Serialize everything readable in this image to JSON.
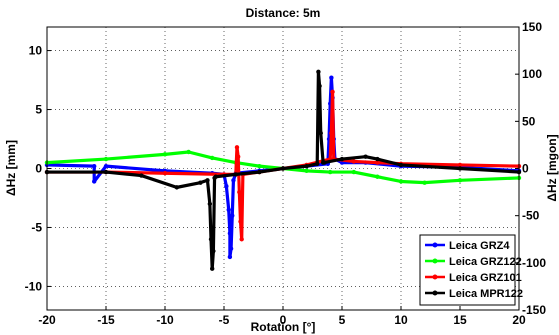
{
  "chart_data": {
    "type": "line",
    "title": "Distance: 5m",
    "xlabel": "Rotation [°]",
    "ylabel": "ΔHz [mm]",
    "ylabel_right": "ΔHz [mgon]",
    "xlim": [
      -20,
      20
    ],
    "ylim": [
      -12,
      12
    ],
    "ylim_right": [
      -150,
      150
    ],
    "xticks": [
      "-20",
      "-15",
      "-10",
      "-5",
      "0",
      "5",
      "10",
      "15",
      "20"
    ],
    "yticks": [
      "-10",
      "-5",
      "0",
      "5",
      "10"
    ],
    "yticks_right": [
      "-150",
      "-100",
      "-50",
      "0",
      "50",
      "100",
      "150"
    ],
    "grid": true,
    "legend_position": "bottom-right",
    "series": [
      {
        "name": "Leica GRZ4",
        "color": "#0000ff",
        "x": [
          -20,
          -16,
          -16,
          -15,
          -10,
          -6,
          -5,
          -4.8,
          -4.6,
          -4.5,
          -4.5,
          -4.4,
          -4.3,
          -4.2,
          -4,
          -2,
          0,
          2,
          3.8,
          3.9,
          4,
          4.1,
          4.2,
          4.3,
          4.4,
          5,
          7,
          10,
          15,
          20
        ],
        "y": [
          0.3,
          0.2,
          -1.1,
          0.2,
          -0.2,
          -0.4,
          -0.5,
          -1.5,
          -3.5,
          -5.5,
          -7.5,
          -6.8,
          -4,
          -1,
          -0.4,
          -0.2,
          0,
          0.2,
          0.4,
          2.5,
          5.5,
          7.7,
          6,
          2.5,
          0.8,
          0.5,
          0.5,
          0.2,
          0.1,
          -0.2
        ]
      },
      {
        "name": "Leica GRZ122",
        "color": "#00ff00",
        "x": [
          -20,
          -15,
          -10,
          -8,
          -6,
          -4,
          -2,
          0,
          2,
          4,
          6,
          8,
          10,
          12,
          15,
          20
        ],
        "y": [
          0.5,
          0.8,
          1.2,
          1.4,
          0.9,
          0.5,
          0.2,
          0,
          -0.2,
          -0.3,
          -0.3,
          -0.7,
          -1.1,
          -1.2,
          -1.0,
          -0.8
        ]
      },
      {
        "name": "Leica GRZ101",
        "color": "#ff0000",
        "x": [
          -20,
          -15,
          -10,
          -5,
          -4,
          -3.9,
          -3.8,
          -3.7,
          -3.6,
          -3.5,
          -3.4,
          -2,
          0,
          2,
          4,
          4.1,
          4.2,
          4.3,
          6,
          8,
          10,
          15,
          20
        ],
        "y": [
          -0.3,
          -0.3,
          -0.4,
          -0.5,
          -0.5,
          1.8,
          1.0,
          -2.0,
          -4.5,
          -6.0,
          -0.5,
          -0.3,
          0,
          0.3,
          0.8,
          3.0,
          6.5,
          0.8,
          0.6,
          0.5,
          0.4,
          0.3,
          0.2
        ]
      },
      {
        "name": "Leica MPR122",
        "color": "#000000",
        "x": [
          -20,
          -15,
          -12,
          -9,
          -7,
          -6.4,
          -6.2,
          -6.1,
          -6.0,
          -5.9,
          -5.8,
          -5.7,
          -4,
          -2,
          0,
          2,
          2.9,
          3.0,
          3.1,
          3.2,
          3.4,
          3.5,
          5,
          7,
          8,
          10,
          15,
          20
        ],
        "y": [
          -0.3,
          -0.3,
          -0.6,
          -1.6,
          -1.2,
          -1.0,
          -3.0,
          -6.0,
          -8.5,
          -7.0,
          -0.8,
          -0.7,
          -0.5,
          -0.3,
          0,
          0.2,
          0.4,
          8.2,
          7.0,
          3.0,
          0.5,
          0.5,
          0.8,
          1.0,
          0.8,
          0.3,
          0,
          -0.3
        ]
      }
    ]
  }
}
